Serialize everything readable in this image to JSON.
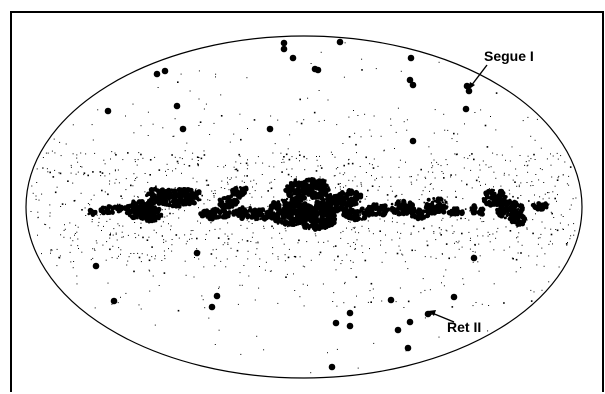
{
  "figure": {
    "kind": "all-sky galactic map (Aitoff/Hammer projection)",
    "background_color": "#ffffff",
    "ink_color": "#000000",
    "outline_color": "#000000",
    "annotations": [
      {
        "id": "segue-i",
        "text": "Segue I"
      },
      {
        "id": "ret-ii",
        "text": "Ret II"
      }
    ]
  }
}
